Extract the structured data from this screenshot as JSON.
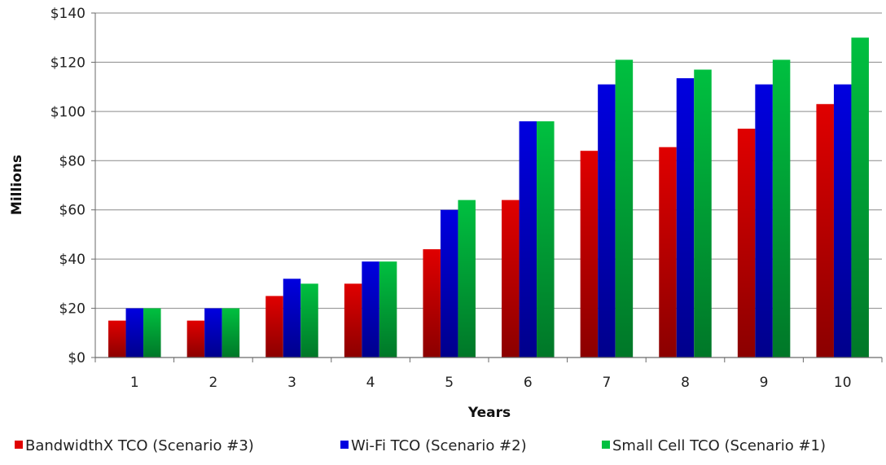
{
  "chart_data": {
    "type": "bar",
    "title": "",
    "xlabel": "Years",
    "ylabel": "Millions",
    "ylim": [
      0,
      140
    ],
    "yticks": [
      0,
      20,
      40,
      60,
      80,
      100,
      120,
      140
    ],
    "ytick_labels": [
      "$0",
      "$20",
      "$40",
      "$60",
      "$80",
      "$100",
      "$120",
      "$140"
    ],
    "categories": [
      "1",
      "2",
      "3",
      "4",
      "5",
      "6",
      "7",
      "8",
      "9",
      "10"
    ],
    "grid": "horizontal",
    "legend_position": "bottom",
    "series": [
      {
        "name": "BandwidthX TCO (Scenario #3)",
        "color": "#e00000",
        "values": [
          15,
          15,
          25,
          30,
          44,
          64,
          84,
          85.5,
          93,
          103
        ]
      },
      {
        "name": "Wi-Fi TCO (Scenario #2)",
        "color": "#0000e0",
        "values": [
          20,
          20,
          32,
          39,
          60,
          96,
          111,
          113.5,
          111,
          111
        ]
      },
      {
        "name": "Small Cell TCO (Scenario #1)",
        "color": "#00c040",
        "values": [
          20,
          20,
          30,
          39,
          64,
          96,
          121,
          117,
          121,
          130
        ]
      }
    ]
  }
}
